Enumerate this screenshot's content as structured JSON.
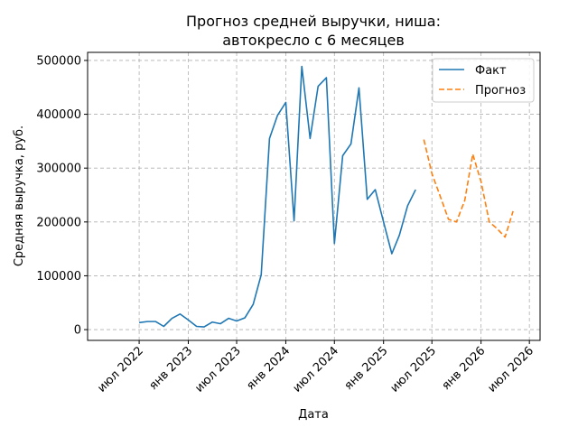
{
  "chart_data": {
    "type": "line",
    "title": [
      "Прогноз средней выручки, ниша:",
      "автокресло с 6 месяцев"
    ],
    "xlabel": "Дата",
    "ylabel": "Средняя выручка, руб.",
    "xlim": [
      "2021-12-20",
      "2026-08-10"
    ],
    "ylim": [
      -20000,
      515000
    ],
    "x_ticks": [
      {
        "date": "2022-07-01",
        "label": "июл 2022"
      },
      {
        "date": "2023-01-01",
        "label": "янв 2023"
      },
      {
        "date": "2023-07-01",
        "label": "июл 2023"
      },
      {
        "date": "2024-01-01",
        "label": "янв 2024"
      },
      {
        "date": "2024-07-01",
        "label": "июл 2024"
      },
      {
        "date": "2025-01-01",
        "label": "янв 2025"
      },
      {
        "date": "2025-07-01",
        "label": "июл 2025"
      },
      {
        "date": "2026-01-01",
        "label": "янв 2026"
      },
      {
        "date": "2026-07-01",
        "label": "июл 2026"
      }
    ],
    "y_ticks": [
      {
        "value": 0,
        "label": "0"
      },
      {
        "value": 100000,
        "label": "100000"
      },
      {
        "value": 200000,
        "label": "200000"
      },
      {
        "value": 300000,
        "label": "300000"
      },
      {
        "value": 400000,
        "label": "400000"
      },
      {
        "value": 500000,
        "label": "500000"
      }
    ],
    "grid": true,
    "legend_position": "top-right",
    "series": [
      {
        "name": "Факт",
        "color": "#1f77b4",
        "style": "solid",
        "points": [
          [
            "2022-07-01",
            13000
          ],
          [
            "2022-08-01",
            15000
          ],
          [
            "2022-09-01",
            15000
          ],
          [
            "2022-10-01",
            6000
          ],
          [
            "2022-11-01",
            21000
          ],
          [
            "2022-12-01",
            29000
          ],
          [
            "2023-01-01",
            18000
          ],
          [
            "2023-02-01",
            6000
          ],
          [
            "2023-03-01",
            5000
          ],
          [
            "2023-04-01",
            14000
          ],
          [
            "2023-05-01",
            11000
          ],
          [
            "2023-06-01",
            21000
          ],
          [
            "2023-07-01",
            16000
          ],
          [
            "2023-08-01",
            22000
          ],
          [
            "2023-09-01",
            47000
          ],
          [
            "2023-10-01",
            102000
          ],
          [
            "2023-11-01",
            355000
          ],
          [
            "2023-12-01",
            398000
          ],
          [
            "2024-01-01",
            422000
          ],
          [
            "2024-02-01",
            202000
          ],
          [
            "2024-03-01",
            489000
          ],
          [
            "2024-04-01",
            355000
          ],
          [
            "2024-05-01",
            452000
          ],
          [
            "2024-06-01",
            468000
          ],
          [
            "2024-07-01",
            160000
          ],
          [
            "2024-08-01",
            323000
          ],
          [
            "2024-09-01",
            345000
          ],
          [
            "2024-10-01",
            449000
          ],
          [
            "2024-11-01",
            242000
          ],
          [
            "2024-12-01",
            260000
          ],
          [
            "2025-01-01",
            200000
          ],
          [
            "2025-02-01",
            141000
          ],
          [
            "2025-03-01",
            175000
          ],
          [
            "2025-04-01",
            230000
          ],
          [
            "2025-05-01",
            260000
          ]
        ]
      },
      {
        "name": "Прогноз",
        "color": "#ff7f0e",
        "style": "dashed",
        "points": [
          [
            "2025-06-01",
            353000
          ],
          [
            "2025-07-01",
            290000
          ],
          [
            "2025-08-01",
            248000
          ],
          [
            "2025-09-01",
            205000
          ],
          [
            "2025-10-01",
            200000
          ],
          [
            "2025-11-01",
            240000
          ],
          [
            "2025-12-01",
            326000
          ],
          [
            "2026-01-01",
            275000
          ],
          [
            "2026-02-01",
            200000
          ],
          [
            "2026-03-01",
            188000
          ],
          [
            "2026-04-01",
            172000
          ],
          [
            "2026-05-01",
            220000
          ]
        ]
      }
    ]
  }
}
